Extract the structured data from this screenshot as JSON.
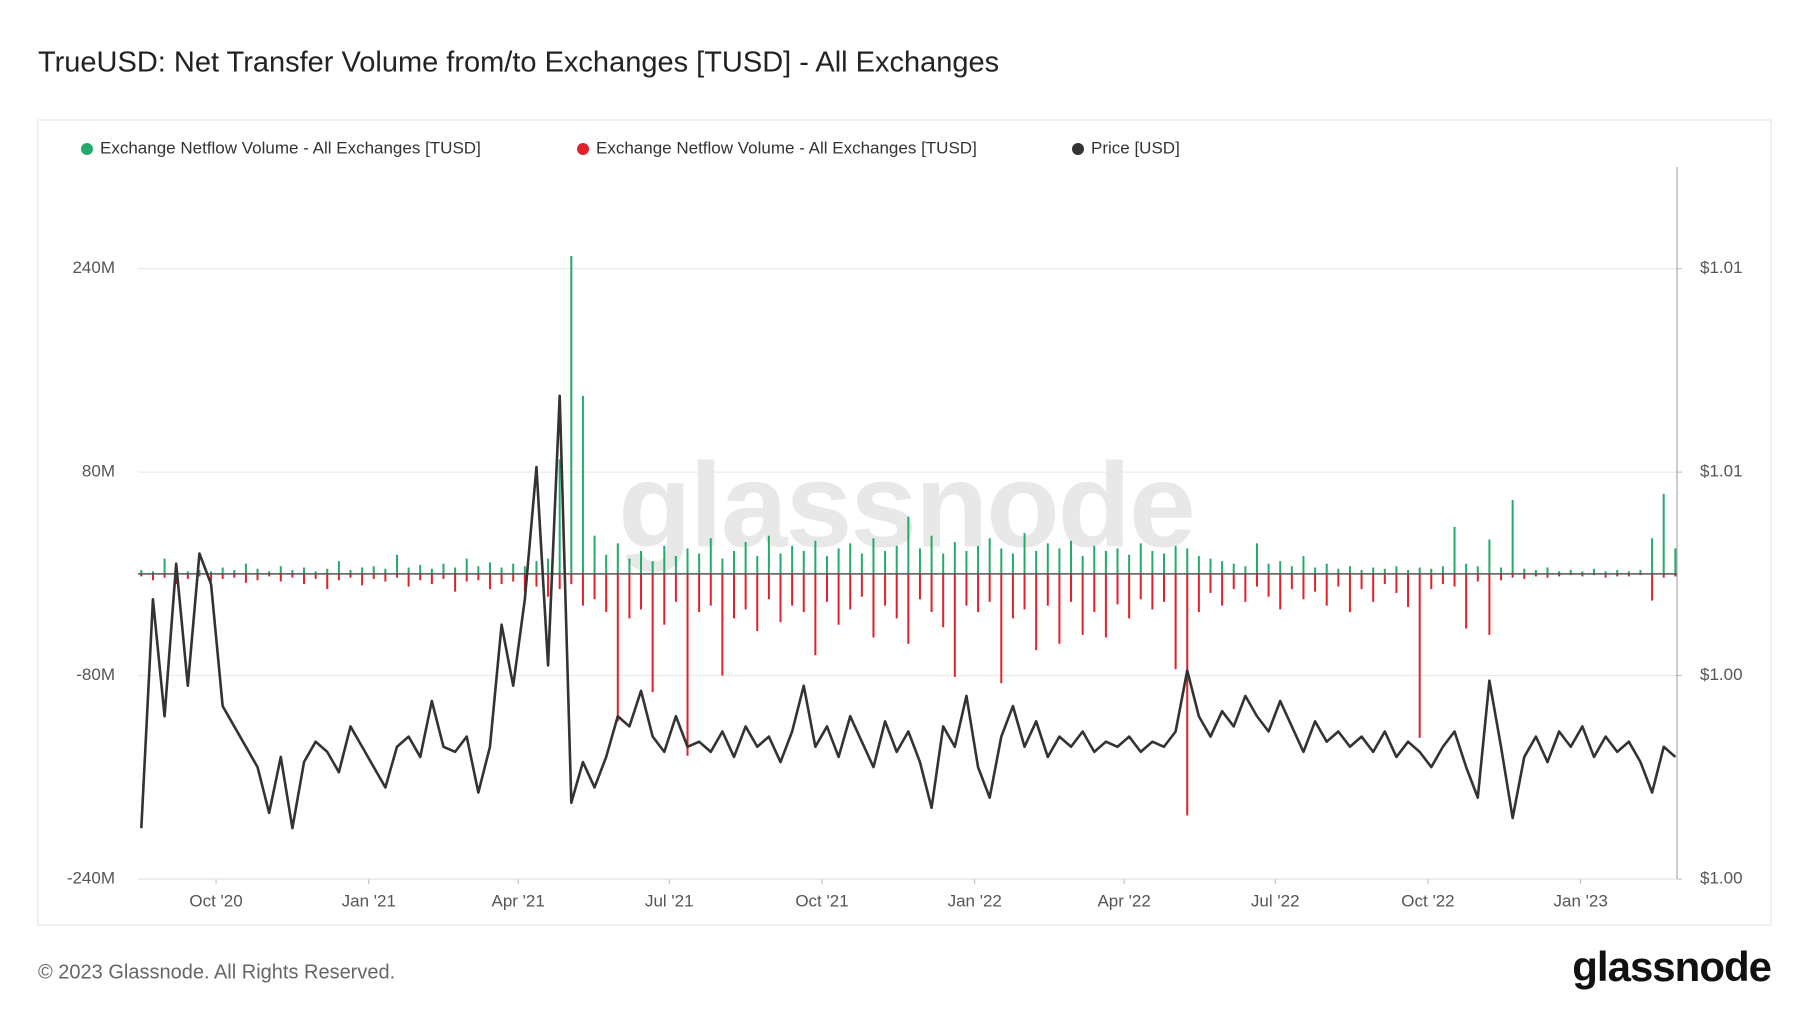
{
  "chart_data": {
    "type": "bar-line",
    "title": "TrueUSD: Net Transfer Volume from/to Exchanges [TUSD] - All Exchanges",
    "watermark": "glassnode",
    "copyright": "© 2023 Glassnode. All Rights Reserved.",
    "brand": "glassnode",
    "xlim": [
      "2020-08-15",
      "2023-02-28"
    ],
    "xticks": [
      {
        "value": "2020-10-01",
        "label": "Oct '20"
      },
      {
        "value": "2021-01-01",
        "label": "Jan '21"
      },
      {
        "value": "2021-04-01",
        "label": "Apr '21"
      },
      {
        "value": "2021-07-01",
        "label": "Jul '21"
      },
      {
        "value": "2021-10-01",
        "label": "Oct '21"
      },
      {
        "value": "2022-01-01",
        "label": "Jan '22"
      },
      {
        "value": "2022-04-01",
        "label": "Apr '22"
      },
      {
        "value": "2022-07-01",
        "label": "Jul '22"
      },
      {
        "value": "2022-10-01",
        "label": "Oct '22"
      },
      {
        "value": "2023-01-01",
        "label": "Jan '23"
      }
    ],
    "ylim": [
      -240,
      320
    ],
    "yticks": [
      {
        "value": -240,
        "label": "-240M"
      },
      {
        "value": -80,
        "label": "-80M"
      },
      {
        "value": 80,
        "label": "80M"
      },
      {
        "value": 240,
        "label": "240M"
      }
    ],
    "y2lim": [
      0.998,
      1.012
    ],
    "y2ticks": [
      {
        "value": 0.998,
        "label": "$1.00"
      },
      {
        "value": 1.002,
        "label": "$1.00"
      },
      {
        "value": 1.006,
        "label": "$1.01"
      },
      {
        "value": 1.01,
        "label": "$1.01"
      }
    ],
    "grid": true,
    "x": [
      "2020-08-17",
      "2020-08-24",
      "2020-08-31",
      "2020-09-07",
      "2020-09-14",
      "2020-09-21",
      "2020-09-28",
      "2020-10-05",
      "2020-10-12",
      "2020-10-19",
      "2020-10-26",
      "2020-11-02",
      "2020-11-09",
      "2020-11-16",
      "2020-11-23",
      "2020-11-30",
      "2020-12-07",
      "2020-12-14",
      "2020-12-21",
      "2020-12-28",
      "2021-01-04",
      "2021-01-11",
      "2021-01-18",
      "2021-01-25",
      "2021-02-01",
      "2021-02-08",
      "2021-02-15",
      "2021-02-22",
      "2021-03-01",
      "2021-03-08",
      "2021-03-15",
      "2021-03-22",
      "2021-03-29",
      "2021-04-05",
      "2021-04-12",
      "2021-04-19",
      "2021-04-26",
      "2021-05-03",
      "2021-05-10",
      "2021-05-17",
      "2021-05-24",
      "2021-05-31",
      "2021-06-07",
      "2021-06-14",
      "2021-06-21",
      "2021-06-28",
      "2021-07-05",
      "2021-07-12",
      "2021-07-19",
      "2021-07-26",
      "2021-08-02",
      "2021-08-09",
      "2021-08-16",
      "2021-08-23",
      "2021-08-30",
      "2021-09-06",
      "2021-09-13",
      "2021-09-20",
      "2021-09-27",
      "2021-10-04",
      "2021-10-11",
      "2021-10-18",
      "2021-10-25",
      "2021-11-01",
      "2021-11-08",
      "2021-11-15",
      "2021-11-22",
      "2021-11-29",
      "2021-12-06",
      "2021-12-13",
      "2021-12-20",
      "2021-12-27",
      "2022-01-03",
      "2022-01-10",
      "2022-01-17",
      "2022-01-24",
      "2022-01-31",
      "2022-02-07",
      "2022-02-14",
      "2022-02-21",
      "2022-02-28",
      "2022-03-07",
      "2022-03-14",
      "2022-03-21",
      "2022-03-28",
      "2022-04-04",
      "2022-04-11",
      "2022-04-18",
      "2022-04-25",
      "2022-05-02",
      "2022-05-09",
      "2022-05-16",
      "2022-05-23",
      "2022-05-30",
      "2022-06-06",
      "2022-06-13",
      "2022-06-20",
      "2022-06-27",
      "2022-07-04",
      "2022-07-11",
      "2022-07-18",
      "2022-07-25",
      "2022-08-01",
      "2022-08-08",
      "2022-08-15",
      "2022-08-22",
      "2022-08-29",
      "2022-09-05",
      "2022-09-12",
      "2022-09-19",
      "2022-09-26",
      "2022-10-03",
      "2022-10-10",
      "2022-10-17",
      "2022-10-24",
      "2022-10-31",
      "2022-11-07",
      "2022-11-14",
      "2022-11-21",
      "2022-11-28",
      "2022-12-05",
      "2022-12-12",
      "2022-12-19",
      "2022-12-26",
      "2023-01-02",
      "2023-01-09",
      "2023-01-16",
      "2023-01-23",
      "2023-01-30",
      "2023-02-06",
      "2023-02-13",
      "2023-02-20",
      "2023-02-27"
    ],
    "series": [
      {
        "name": "Exchange Netflow Volume - All Exchanges [TUSD]",
        "color": "#26a96c",
        "values": [
          3,
          2,
          12,
          4,
          2,
          3,
          2,
          5,
          3,
          8,
          4,
          2,
          6,
          3,
          5,
          2,
          4,
          10,
          3,
          5,
          6,
          4,
          15,
          5,
          7,
          4,
          8,
          5,
          12,
          6,
          9,
          5,
          8,
          6,
          10,
          12,
          90,
          250,
          140,
          30,
          15,
          24,
          12,
          18,
          10,
          22,
          14,
          20,
          16,
          28,
          12,
          18,
          25,
          14,
          30,
          16,
          22,
          18,
          26,
          14,
          20,
          24,
          16,
          28,
          18,
          22,
          45,
          20,
          30,
          16,
          25,
          18,
          22,
          28,
          20,
          16,
          32,
          18,
          24,
          20,
          26,
          14,
          22,
          18,
          20,
          15,
          24,
          18,
          16,
          22,
          20,
          14,
          12,
          10,
          8,
          6,
          24,
          8,
          10,
          6,
          14,
          5,
          8,
          4,
          6,
          3,
          5,
          4,
          6,
          3,
          5,
          4,
          6,
          37,
          8,
          6,
          27,
          5,
          58,
          4,
          3,
          5,
          2,
          3,
          2,
          4,
          2,
          3,
          2,
          3,
          28,
          63,
          20
        ]
      },
      {
        "name": "Exchange Netflow Volume - All Exchanges [TUSD]",
        "color": "#e0202a",
        "values": [
          -2,
          -5,
          -3,
          -8,
          -4,
          -2,
          -6,
          -4,
          -3,
          -7,
          -5,
          -2,
          -6,
          -3,
          -8,
          -4,
          -12,
          -5,
          -3,
          -9,
          -4,
          -6,
          -3,
          -10,
          -5,
          -8,
          -4,
          -14,
          -6,
          -5,
          -12,
          -8,
          -6,
          -14,
          -10,
          -18,
          -12,
          -8,
          -25,
          -20,
          -30,
          -116,
          -35,
          -28,
          -93,
          -40,
          -22,
          -143,
          -30,
          -25,
          -80,
          -35,
          -28,
          -45,
          -20,
          -38,
          -25,
          -30,
          -64,
          -22,
          -40,
          -28,
          -18,
          -50,
          -25,
          -35,
          -55,
          -20,
          -30,
          -42,
          -81,
          -25,
          -30,
          -22,
          -86,
          -35,
          -28,
          -60,
          -25,
          -55,
          -22,
          -48,
          -30,
          -50,
          -24,
          -35,
          -20,
          -28,
          -22,
          -75,
          -190,
          -30,
          -15,
          -25,
          -12,
          -22,
          -10,
          -18,
          -28,
          -12,
          -20,
          -14,
          -25,
          -10,
          -30,
          -12,
          -22,
          -8,
          -15,
          -26,
          -129,
          -12,
          -8,
          -10,
          -43,
          -6,
          -48,
          -5,
          -3,
          -4,
          -2,
          -3,
          -2,
          -1,
          -2,
          -1,
          -3,
          -2,
          -2,
          -1,
          -21,
          -3,
          -2
        ]
      },
      {
        "name": "Price [USD]",
        "color": "#333333",
        "axis": "y2",
        "values": [
          0.999,
          1.0035,
          1.0012,
          1.0042,
          1.0018,
          1.0044,
          1.0038,
          1.0014,
          1.001,
          1.0006,
          1.0002,
          0.9993,
          1.0004,
          0.999,
          1.0003,
          1.0007,
          1.0005,
          1.0001,
          1.001,
          1.0006,
          1.0002,
          0.9998,
          1.0006,
          1.0008,
          1.0004,
          1.0015,
          1.0006,
          1.0005,
          1.0008,
          0.9997,
          1.0006,
          1.003,
          1.0018,
          1.0035,
          1.0061,
          1.0022,
          1.0075,
          0.9995,
          1.0003,
          0.9998,
          1.0004,
          1.0012,
          1.001,
          1.0017,
          1.0008,
          1.0005,
          1.0012,
          1.0006,
          1.0007,
          1.0005,
          1.0009,
          1.0004,
          1.001,
          1.0006,
          1.0008,
          1.0003,
          1.0009,
          1.0018,
          1.0006,
          1.001,
          1.0004,
          1.0012,
          1.0007,
          1.0002,
          1.0011,
          1.0005,
          1.0009,
          1.0003,
          0.9994,
          1.001,
          1.0006,
          1.0016,
          1.0002,
          0.9996,
          1.0008,
          1.0014,
          1.0006,
          1.0011,
          1.0004,
          1.0008,
          1.0006,
          1.0009,
          1.0005,
          1.0007,
          1.0006,
          1.0008,
          1.0005,
          1.0007,
          1.0006,
          1.0009,
          1.0021,
          1.0012,
          1.0008,
          1.0013,
          1.001,
          1.0016,
          1.0012,
          1.0009,
          1.0015,
          1.001,
          1.0005,
          1.0011,
          1.0007,
          1.0009,
          1.0006,
          1.0008,
          1.0005,
          1.0009,
          1.0004,
          1.0007,
          1.0005,
          1.0002,
          1.0006,
          1.0009,
          1.0002,
          0.9996,
          1.0019,
          1.0006,
          0.9992,
          1.0004,
          1.0008,
          1.0003,
          1.0009,
          1.0006,
          1.001,
          1.0004,
          1.0008,
          1.0005,
          1.0007,
          1.0003,
          0.9997,
          1.0006,
          1.0004
        ]
      }
    ]
  }
}
